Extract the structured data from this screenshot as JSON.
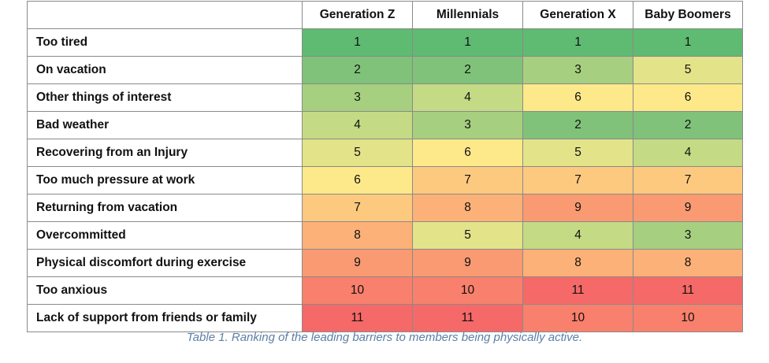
{
  "table": {
    "corner": "",
    "columns": [
      "Generation Z",
      "Millennials",
      "Generation X",
      "Baby Boomers"
    ],
    "rows": [
      {
        "label": "Too tired",
        "values": [
          1,
          1,
          1,
          1
        ]
      },
      {
        "label": "On vacation",
        "values": [
          2,
          2,
          3,
          5
        ]
      },
      {
        "label": "Other things of interest",
        "values": [
          3,
          4,
          6,
          6
        ]
      },
      {
        "label": "Bad weather",
        "values": [
          4,
          3,
          2,
          2
        ]
      },
      {
        "label": "Recovering from an Injury",
        "values": [
          5,
          6,
          5,
          4
        ]
      },
      {
        "label": "Too much pressure at work",
        "values": [
          6,
          7,
          7,
          7
        ]
      },
      {
        "label": "Returning from vacation",
        "values": [
          7,
          8,
          9,
          9
        ]
      },
      {
        "label": "Overcommitted",
        "values": [
          8,
          5,
          4,
          3
        ]
      },
      {
        "label": "Physical discomfort during exercise",
        "values": [
          9,
          9,
          8,
          8
        ]
      },
      {
        "label": "Too anxious",
        "values": [
          10,
          10,
          11,
          11
        ]
      },
      {
        "label": "Lack of support from friends or family",
        "values": [
          11,
          11,
          10,
          10
        ]
      }
    ],
    "heat_colors": {
      "1": "#5fba72",
      "2": "#80c27a",
      "3": "#a6cf7f",
      "4": "#c5da84",
      "5": "#e3e389",
      "6": "#fde98a",
      "7": "#fcc97f",
      "8": "#fcb178",
      "9": "#f99a72",
      "10": "#f8806c",
      "11": "#f56968"
    }
  },
  "caption": "Table 1. Ranking of the leading barriers to members being physically active."
}
